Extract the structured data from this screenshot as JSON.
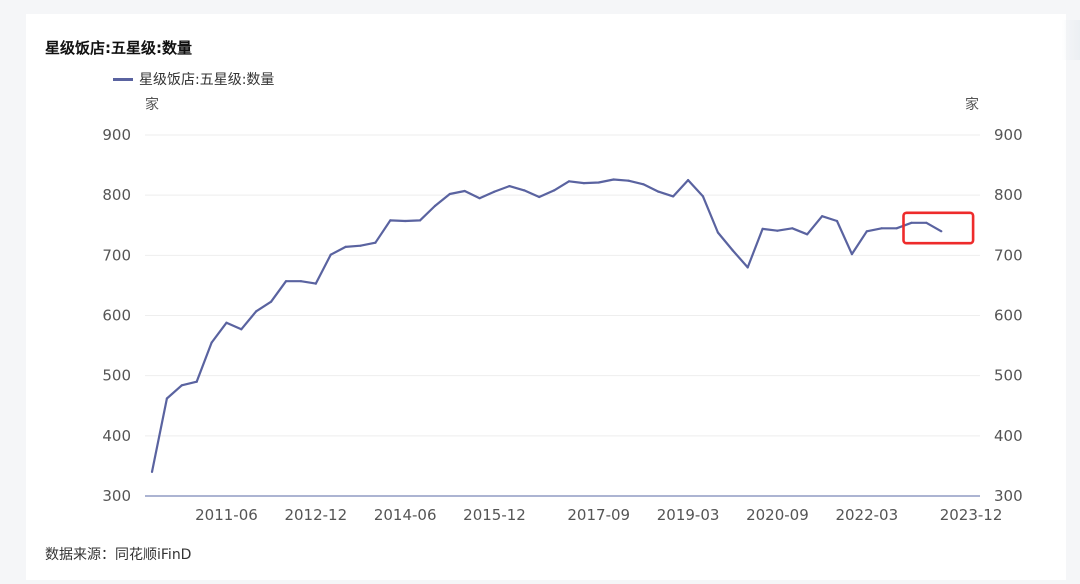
{
  "source_text": "数据来源：同花顺iFinD",
  "colors": {
    "line": "#5a63a0",
    "highlight": "#ee2b2b",
    "grid": "#eeeeee",
    "axis": "#7a86b6"
  },
  "chart_data": {
    "type": "line",
    "title": "星级饭店:五星级:数量",
    "y_unit_left": "家",
    "y_unit_right": "家",
    "ylim": [
      300,
      900
    ],
    "y_ticks": [
      900,
      800,
      700,
      600,
      500,
      400,
      300
    ],
    "x_tick_labels": [
      "2011-06",
      "2012-12",
      "2014-06",
      "2015-12",
      "2017-09",
      "2019-03",
      "2020-09",
      "2022-03",
      "2023-12"
    ],
    "grid": true,
    "legend_position": "top-left",
    "series": [
      {
        "name": "星级饭店:五星级:数量",
        "x": [
          "2010-03",
          "2010-06",
          "2010-09",
          "2010-12",
          "2011-03",
          "2011-06",
          "2011-09",
          "2011-12",
          "2012-03",
          "2012-06",
          "2012-09",
          "2012-12",
          "2013-03",
          "2013-06",
          "2013-09",
          "2013-12",
          "2014-03",
          "2014-06",
          "2014-09",
          "2014-12",
          "2015-03",
          "2015-06",
          "2015-09",
          "2015-12",
          "2016-03",
          "2016-06",
          "2016-09",
          "2016-12",
          "2017-03",
          "2017-06",
          "2017-09",
          "2017-12",
          "2018-03",
          "2018-06",
          "2018-09",
          "2018-12",
          "2019-03",
          "2019-06",
          "2019-09",
          "2019-12",
          "2020-03",
          "2020-06",
          "2020-09",
          "2020-12",
          "2021-03",
          "2021-06",
          "2021-09",
          "2021-12",
          "2022-03",
          "2022-06",
          "2022-09",
          "2022-12",
          "2023-03",
          "2023-06",
          "2023-12"
        ],
        "values": [
          340,
          462,
          484,
          490,
          555,
          588,
          577,
          607,
          623,
          657,
          657,
          653,
          701,
          714,
          716,
          721,
          758,
          757,
          758,
          782,
          802,
          807,
          795,
          806,
          815,
          808,
          797,
          808,
          823,
          820,
          821,
          826,
          824,
          818,
          806,
          798,
          825,
          798,
          738,
          708,
          680,
          744,
          741,
          745,
          735,
          765,
          757,
          702,
          740,
          745,
          745,
          754,
          754,
          740,
          null
        ]
      }
    ],
    "annotations": [
      {
        "type": "highlight-box",
        "from": "2022-12",
        "to": "2023-12",
        "color": "red"
      }
    ]
  }
}
